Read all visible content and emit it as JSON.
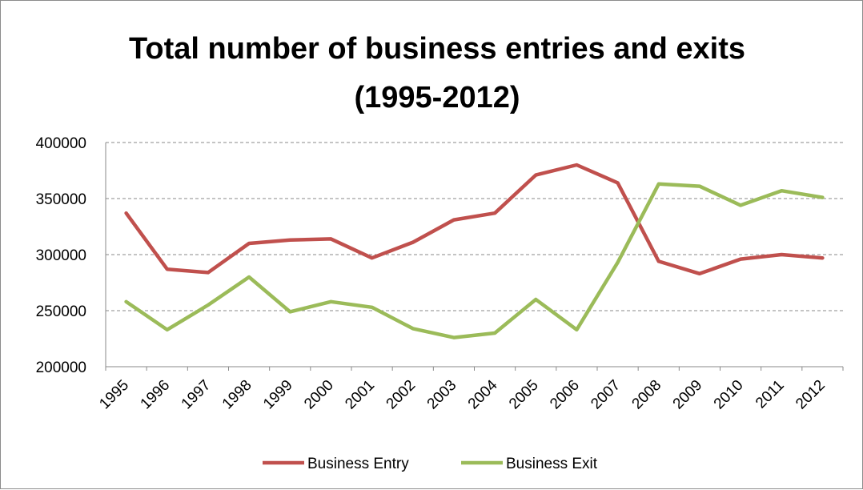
{
  "chart_data": {
    "type": "line",
    "title_lines": [
      "Total number of business entries and exits",
      "(1995-2012)"
    ],
    "categories": [
      "1995",
      "1996",
      "1997",
      "1998",
      "1999",
      "2000",
      "2001",
      "2002",
      "2003",
      "2004",
      "2005",
      "2006",
      "2007",
      "2008",
      "2009",
      "2010",
      "2011",
      "2012"
    ],
    "ylim": [
      200000,
      400000
    ],
    "yticks": [
      "200000",
      "250000",
      "300000",
      "350000",
      "400000"
    ],
    "ytick_values": [
      200000,
      250000,
      300000,
      350000,
      400000
    ],
    "grid": true,
    "legend_position": "bottom",
    "series": [
      {
        "name": "Business Entry",
        "color": "#c0504d",
        "values": [
          337000,
          287000,
          284000,
          310000,
          313000,
          314000,
          297000,
          311000,
          331000,
          337000,
          371000,
          380000,
          364000,
          294000,
          283000,
          296000,
          300000,
          297000
        ]
      },
      {
        "name": "Business Exit",
        "color": "#9bbb59",
        "values": [
          258000,
          233000,
          255000,
          280000,
          249000,
          258000,
          253000,
          234000,
          226000,
          230000,
          260000,
          233000,
          293000,
          363000,
          361000,
          344000,
          357000,
          351000
        ]
      }
    ]
  }
}
